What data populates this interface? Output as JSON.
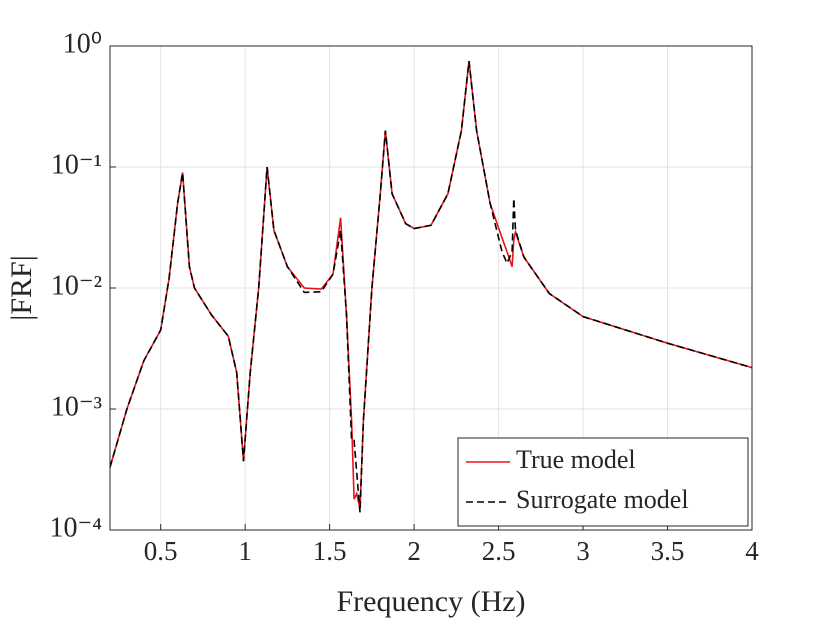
{
  "chart_data": {
    "type": "line",
    "xlabel": "Frequency (Hz)",
    "ylabel": "|FRF|",
    "x": [
      0.2,
      0.3,
      0.4,
      0.5,
      0.55,
      0.6,
      0.63,
      0.67,
      0.7,
      0.8,
      0.9,
      0.95,
      0.99,
      1.03,
      1.08,
      1.13,
      1.17,
      1.25,
      1.35,
      1.45,
      1.52,
      1.565,
      1.6,
      1.63,
      1.645,
      1.66,
      1.68,
      1.7,
      1.75,
      1.8,
      1.83,
      1.87,
      1.95,
      2.0,
      2.1,
      2.2,
      2.28,
      2.325,
      2.37,
      2.45,
      2.52,
      2.55,
      2.58,
      2.59,
      2.6,
      2.65,
      2.8,
      3.0,
      3.5,
      4.0
    ],
    "series": [
      {
        "name": "True model",
        "color": "#e8141b",
        "dash": false,
        "values": [
          0.00033,
          0.001,
          0.0025,
          0.0045,
          0.012,
          0.05,
          0.09,
          0.015,
          0.01,
          0.006,
          0.004,
          0.002,
          0.00037,
          0.002,
          0.01,
          0.1,
          0.03,
          0.015,
          0.01,
          0.0098,
          0.013,
          0.038,
          0.006,
          0.0008,
          0.00018,
          0.0002,
          0.00015,
          0.0008,
          0.01,
          0.06,
          0.2,
          0.06,
          0.034,
          0.031,
          0.033,
          0.06,
          0.2,
          0.75,
          0.2,
          0.05,
          0.026,
          0.02,
          0.015,
          0.025,
          0.029,
          0.018,
          0.009,
          0.0058,
          0.0035,
          0.0022
        ]
      },
      {
        "name": "Surrogate model",
        "color": "#000000",
        "dash": true,
        "values": [
          0.00033,
          0.001,
          0.0025,
          0.0045,
          0.012,
          0.05,
          0.09,
          0.015,
          0.01,
          0.006,
          0.004,
          0.002,
          0.00037,
          0.002,
          0.01,
          0.1,
          0.03,
          0.015,
          0.0092,
          0.0093,
          0.013,
          0.03,
          0.006,
          0.00055,
          0.00055,
          0.0003,
          0.00014,
          0.0008,
          0.01,
          0.06,
          0.2,
          0.06,
          0.034,
          0.031,
          0.033,
          0.06,
          0.2,
          0.75,
          0.2,
          0.05,
          0.02,
          0.016,
          0.02,
          0.055,
          0.03,
          0.018,
          0.009,
          0.0058,
          0.0035,
          0.0022
        ]
      }
    ],
    "xlim": [
      0.2,
      4
    ],
    "xticks": [
      0.5,
      1,
      1.5,
      2,
      2.5,
      3,
      3.5,
      4
    ],
    "ylim": [
      0.0001,
      1
    ],
    "ylog": true,
    "yticks": [
      {
        "value": 0.0001,
        "label": "10⁻⁴"
      },
      {
        "value": 0.001,
        "label": "10⁻³"
      },
      {
        "value": 0.01,
        "label": "10⁻²"
      },
      {
        "value": 0.1,
        "label": "10⁻¹"
      },
      {
        "value": 1,
        "label": "10⁰"
      }
    ],
    "grid": true,
    "legend": "lower right"
  }
}
